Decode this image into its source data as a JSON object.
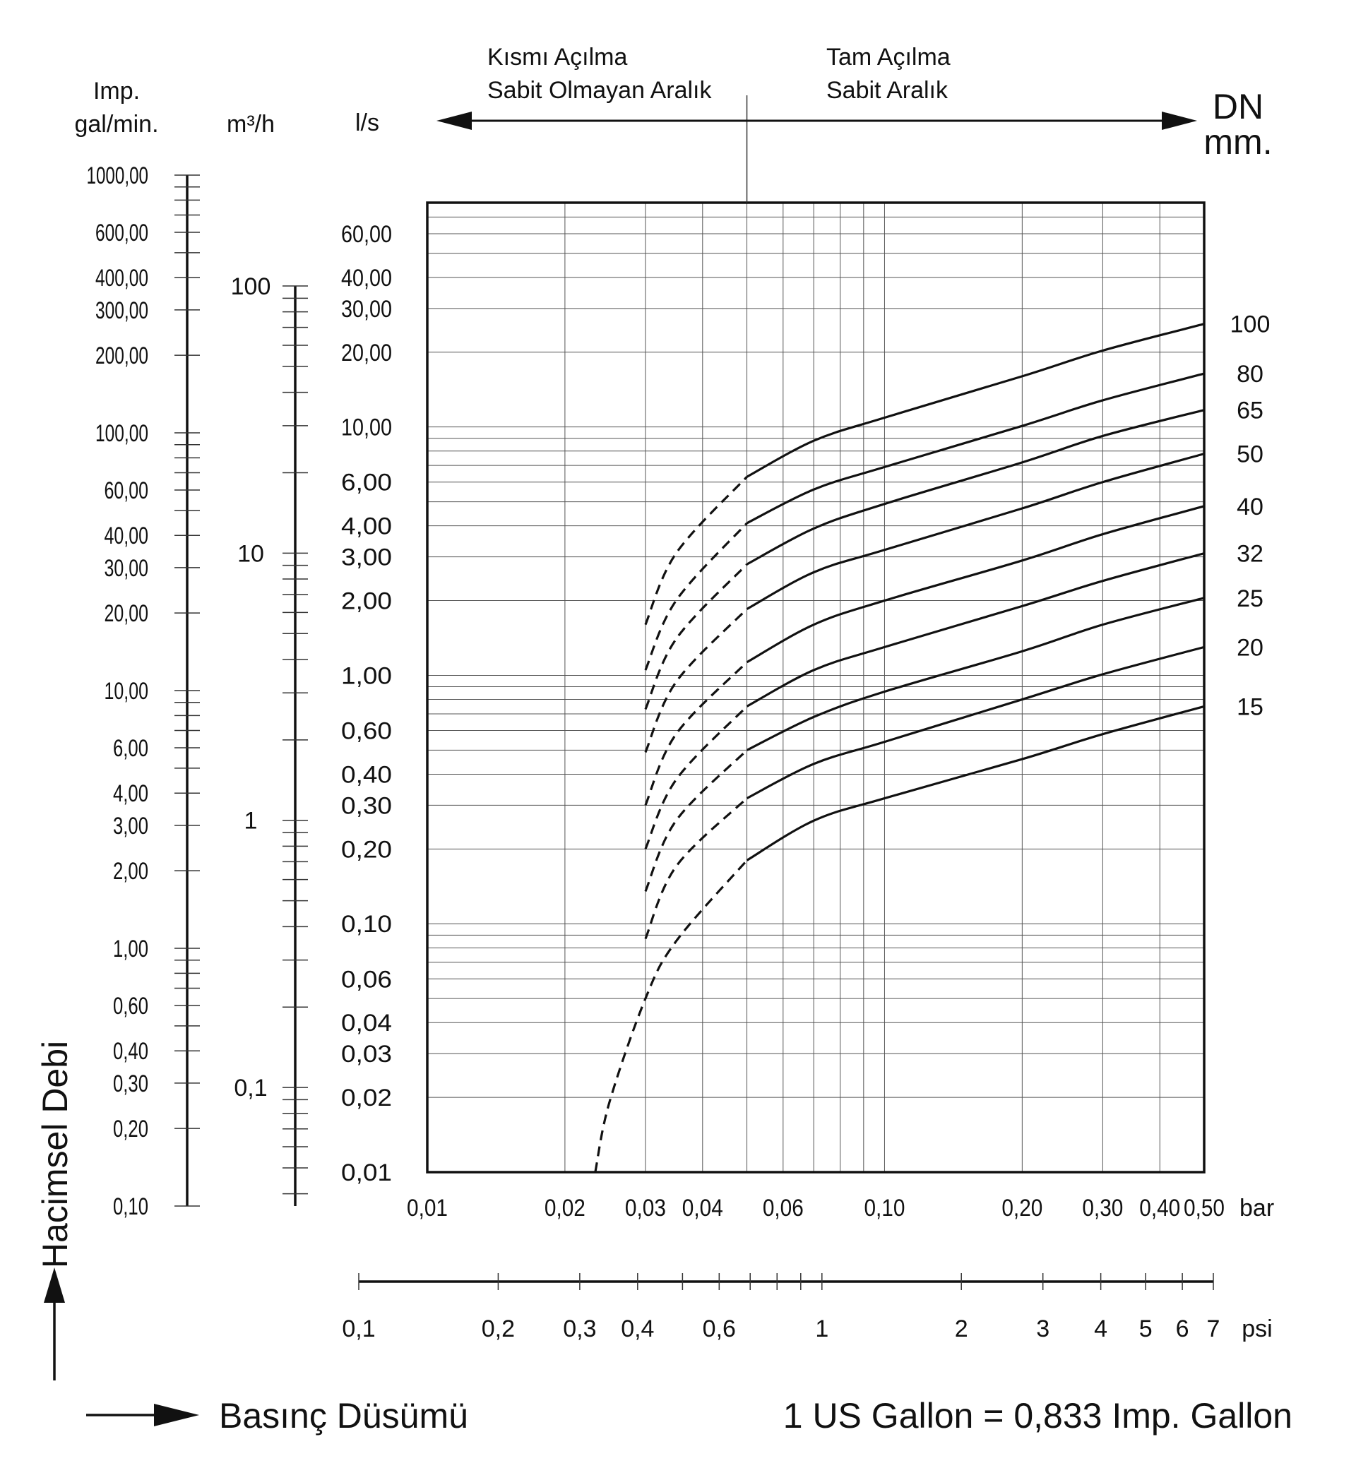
{
  "chart_data": {
    "type": "line",
    "scale": "log-log",
    "grid": true,
    "annotations": {
      "partial_opening": [
        "Kısmı Açılma",
        "Sabit Olmayan Aralık"
      ],
      "full_opening": [
        "Tam Açılma",
        "Sabit Aralık"
      ]
    },
    "y_axis_title": "Hacimsel Debi",
    "x_axis_title": "Basınç Düsümü",
    "footnote": "1 US Gallon = 0,833 Imp. Gallon",
    "series_header": [
      "DN",
      "mm."
    ],
    "y_scales": [
      {
        "unit_lines": [
          "Imp.",
          "gal/min."
        ],
        "ylim": [
          0.1,
          1000
        ],
        "ticks": [
          {
            "value": 1000,
            "label": "1000,00"
          },
          {
            "value": 600,
            "label": "600,00"
          },
          {
            "value": 400,
            "label": "400,00"
          },
          {
            "value": 300,
            "label": "300,00"
          },
          {
            "value": 200,
            "label": "200,00"
          },
          {
            "value": 100,
            "label": "100,00"
          },
          {
            "value": 60,
            "label": "60,00"
          },
          {
            "value": 40,
            "label": "40,00"
          },
          {
            "value": 30,
            "label": "30,00"
          },
          {
            "value": 20,
            "label": "20,00"
          },
          {
            "value": 10,
            "label": "10,00"
          },
          {
            "value": 6,
            "label": "6,00"
          },
          {
            "value": 4,
            "label": "4,00"
          },
          {
            "value": 3,
            "label": "3,00"
          },
          {
            "value": 2,
            "label": "2,00"
          },
          {
            "value": 1,
            "label": "1,00"
          },
          {
            "value": 0.6,
            "label": "0,60"
          },
          {
            "value": 0.4,
            "label": "0,40"
          },
          {
            "value": 0.3,
            "label": "0,30"
          },
          {
            "value": 0.2,
            "label": "0,20"
          },
          {
            "value": 0.1,
            "label": "0,10"
          }
        ]
      },
      {
        "unit_lines": [
          "m³/h"
        ],
        "ylim": [
          0.036,
          100
        ],
        "ticks": [
          {
            "value": 100,
            "label": "100"
          },
          {
            "value": 10,
            "label": "10"
          },
          {
            "value": 1,
            "label": "1"
          },
          {
            "value": 0.1,
            "label": "0,1"
          }
        ]
      },
      {
        "unit_lines": [
          "l/s"
        ],
        "ylim": [
          0.01,
          80
        ],
        "ticks": [
          {
            "value": 60,
            "label": "60,00"
          },
          {
            "value": 40,
            "label": "40,00"
          },
          {
            "value": 30,
            "label": "30,00"
          },
          {
            "value": 20,
            "label": "20,00"
          },
          {
            "value": 10,
            "label": "10,00"
          },
          {
            "value": 6,
            "label": "6,00"
          },
          {
            "value": 4,
            "label": "4,00"
          },
          {
            "value": 3,
            "label": "3,00"
          },
          {
            "value": 2,
            "label": "2,00"
          },
          {
            "value": 1,
            "label": "1,00"
          },
          {
            "value": 0.6,
            "label": "0,60"
          },
          {
            "value": 0.4,
            "label": "0,40"
          },
          {
            "value": 0.3,
            "label": "0,30"
          },
          {
            "value": 0.2,
            "label": "0,20"
          },
          {
            "value": 0.1,
            "label": "0,10"
          },
          {
            "value": 0.06,
            "label": "0,06"
          },
          {
            "value": 0.04,
            "label": "0,04"
          },
          {
            "value": 0.03,
            "label": "0,03"
          },
          {
            "value": 0.02,
            "label": "0,02"
          },
          {
            "value": 0.01,
            "label": "0,01"
          }
        ]
      }
    ],
    "x_scales": [
      {
        "unit": "bar",
        "xlim": [
          0.01,
          0.5
        ],
        "ticks": [
          {
            "value": 0.01,
            "label": "0,01"
          },
          {
            "value": 0.02,
            "label": "0,02"
          },
          {
            "value": 0.03,
            "label": "0,03"
          },
          {
            "value": 0.04,
            "label": "0,04"
          },
          {
            "value": 0.06,
            "label": "0,06"
          },
          {
            "value": 0.1,
            "label": "0,10"
          },
          {
            "value": 0.2,
            "label": "0,20"
          },
          {
            "value": 0.3,
            "label": "0,30"
          },
          {
            "value": 0.4,
            "label": "0,40"
          },
          {
            "value": 0.5,
            "label": "0,50"
          }
        ]
      },
      {
        "unit": "psi",
        "xlim": [
          0.1,
          7
        ],
        "ticks": [
          {
            "value": 0.1,
            "label": "0,1"
          },
          {
            "value": 0.2,
            "label": "0,2"
          },
          {
            "value": 0.3,
            "label": "0,3"
          },
          {
            "value": 0.4,
            "label": "0,4"
          },
          {
            "value": 0.6,
            "label": "0,6"
          },
          {
            "value": 1,
            "label": "1"
          },
          {
            "value": 2,
            "label": "2"
          },
          {
            "value": 3,
            "label": "3"
          },
          {
            "value": 4,
            "label": "4"
          },
          {
            "value": 5,
            "label": "5"
          },
          {
            "value": 6,
            "label": "6"
          },
          {
            "value": 7,
            "label": "7"
          }
        ]
      }
    ],
    "full_opening_from_bar": 0.05,
    "series": [
      {
        "name": "100",
        "points": [
          [
            0.03,
            1.6
          ],
          [
            0.035,
            3.1
          ],
          [
            0.05,
            6.3
          ],
          [
            0.07,
            8.8
          ],
          [
            0.1,
            10.9
          ],
          [
            0.2,
            16.0
          ],
          [
            0.3,
            20.3
          ],
          [
            0.5,
            26.0
          ]
        ]
      },
      {
        "name": "80",
        "points": [
          [
            0.03,
            1.05
          ],
          [
            0.035,
            2.0
          ],
          [
            0.05,
            4.1
          ],
          [
            0.07,
            5.6
          ],
          [
            0.1,
            6.9
          ],
          [
            0.2,
            10.1
          ],
          [
            0.3,
            12.8
          ],
          [
            0.5,
            16.4
          ]
        ]
      },
      {
        "name": "65",
        "points": [
          [
            0.03,
            0.73
          ],
          [
            0.035,
            1.4
          ],
          [
            0.05,
            2.8
          ],
          [
            0.07,
            3.9
          ],
          [
            0.1,
            4.9
          ],
          [
            0.2,
            7.2
          ],
          [
            0.3,
            9.2
          ],
          [
            0.5,
            11.7
          ]
        ]
      },
      {
        "name": "50",
        "points": [
          [
            0.03,
            0.49
          ],
          [
            0.035,
            0.94
          ],
          [
            0.05,
            1.85
          ],
          [
            0.07,
            2.6
          ],
          [
            0.1,
            3.2
          ],
          [
            0.2,
            4.7
          ],
          [
            0.3,
            6.0
          ],
          [
            0.5,
            7.8
          ]
        ]
      },
      {
        "name": "40",
        "points": [
          [
            0.03,
            0.3
          ],
          [
            0.035,
            0.58
          ],
          [
            0.05,
            1.13
          ],
          [
            0.07,
            1.6
          ],
          [
            0.1,
            2.0
          ],
          [
            0.2,
            2.9
          ],
          [
            0.3,
            3.7
          ],
          [
            0.5,
            4.8
          ]
        ]
      },
      {
        "name": "32",
        "points": [
          [
            0.03,
            0.2
          ],
          [
            0.035,
            0.38
          ],
          [
            0.05,
            0.75
          ],
          [
            0.07,
            1.05
          ],
          [
            0.1,
            1.3
          ],
          [
            0.2,
            1.9
          ],
          [
            0.3,
            2.4
          ],
          [
            0.5,
            3.1
          ]
        ]
      },
      {
        "name": "25",
        "points": [
          [
            0.03,
            0.135
          ],
          [
            0.035,
            0.26
          ],
          [
            0.05,
            0.5
          ],
          [
            0.07,
            0.68
          ],
          [
            0.1,
            0.86
          ],
          [
            0.2,
            1.25
          ],
          [
            0.3,
            1.6
          ],
          [
            0.5,
            2.05
          ]
        ]
      },
      {
        "name": "20",
        "points": [
          [
            0.03,
            0.087
          ],
          [
            0.035,
            0.17
          ],
          [
            0.05,
            0.32
          ],
          [
            0.07,
            0.44
          ],
          [
            0.1,
            0.54
          ],
          [
            0.2,
            0.8
          ],
          [
            0.3,
            1.01
          ],
          [
            0.5,
            1.3
          ]
        ]
      },
      {
        "name": "15",
        "points": [
          [
            0.0233,
            0.01
          ],
          [
            0.025,
            0.019
          ],
          [
            0.03,
            0.05
          ],
          [
            0.035,
            0.085
          ],
          [
            0.05,
            0.18
          ],
          [
            0.07,
            0.26
          ],
          [
            0.1,
            0.32
          ],
          [
            0.2,
            0.46
          ],
          [
            0.3,
            0.58
          ],
          [
            0.5,
            0.75
          ]
        ]
      }
    ]
  }
}
